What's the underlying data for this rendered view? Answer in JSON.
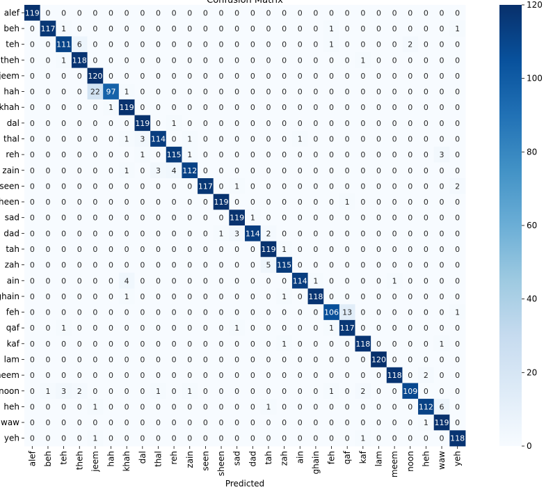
{
  "chart_data": {
    "type": "heatmap",
    "title": "Confusion Matrix",
    "xlabel": "Predicted",
    "ylabel": "",
    "labels": [
      "alef",
      "beh",
      "teh",
      "theh",
      "jeem",
      "hah",
      "khah",
      "dal",
      "thal",
      "reh",
      "zain",
      "seen",
      "sheen",
      "sad",
      "dad",
      "tah",
      "zah",
      "ain",
      "ghain",
      "feh",
      "qaf",
      "kaf",
      "lam",
      "meem",
      "noon",
      "heh",
      "waw",
      "yeh"
    ],
    "matrix": [
      [
        119,
        0,
        0,
        0,
        0,
        0,
        0,
        0,
        0,
        0,
        0,
        0,
        0,
        0,
        0,
        0,
        0,
        0,
        0,
        0,
        0,
        0,
        0,
        0,
        0,
        0,
        0,
        0
      ],
      [
        0,
        117,
        1,
        0,
        0,
        0,
        0,
        0,
        0,
        0,
        0,
        0,
        0,
        0,
        0,
        0,
        0,
        0,
        0,
        1,
        0,
        0,
        0,
        0,
        0,
        0,
        0,
        1
      ],
      [
        0,
        0,
        111,
        6,
        0,
        0,
        0,
        0,
        0,
        0,
        0,
        0,
        0,
        0,
        0,
        0,
        0,
        0,
        0,
        1,
        0,
        0,
        0,
        0,
        2,
        0,
        0,
        0
      ],
      [
        0,
        0,
        1,
        118,
        0,
        0,
        0,
        0,
        0,
        0,
        0,
        0,
        0,
        0,
        0,
        0,
        0,
        0,
        0,
        0,
        0,
        1,
        0,
        0,
        0,
        0,
        0,
        0
      ],
      [
        0,
        0,
        0,
        0,
        120,
        0,
        0,
        0,
        0,
        0,
        0,
        0,
        0,
        0,
        0,
        0,
        0,
        0,
        0,
        0,
        0,
        0,
        0,
        0,
        0,
        0,
        0,
        0
      ],
      [
        0,
        0,
        0,
        0,
        22,
        97,
        1,
        0,
        0,
        0,
        0,
        0,
        0,
        0,
        0,
        0,
        0,
        0,
        0,
        0,
        0,
        0,
        0,
        0,
        0,
        0,
        0,
        0
      ],
      [
        0,
        0,
        0,
        0,
        0,
        1,
        119,
        0,
        0,
        0,
        0,
        0,
        0,
        0,
        0,
        0,
        0,
        0,
        0,
        0,
        0,
        0,
        0,
        0,
        0,
        0,
        0,
        0
      ],
      [
        0,
        0,
        0,
        0,
        0,
        0,
        0,
        119,
        0,
        1,
        0,
        0,
        0,
        0,
        0,
        0,
        0,
        0,
        0,
        0,
        0,
        0,
        0,
        0,
        0,
        0,
        0,
        0
      ],
      [
        0,
        0,
        0,
        0,
        0,
        0,
        1,
        3,
        114,
        0,
        1,
        0,
        0,
        0,
        0,
        0,
        0,
        1,
        0,
        0,
        0,
        0,
        0,
        0,
        0,
        0,
        0,
        0
      ],
      [
        0,
        0,
        0,
        0,
        0,
        0,
        0,
        1,
        0,
        115,
        1,
        0,
        0,
        0,
        0,
        0,
        0,
        0,
        0,
        0,
        0,
        0,
        0,
        0,
        0,
        0,
        3,
        0
      ],
      [
        0,
        0,
        0,
        0,
        0,
        0,
        1,
        0,
        3,
        4,
        112,
        0,
        0,
        0,
        0,
        0,
        0,
        0,
        0,
        0,
        0,
        0,
        0,
        0,
        0,
        0,
        0,
        0
      ],
      [
        0,
        0,
        0,
        0,
        0,
        0,
        0,
        0,
        0,
        0,
        0,
        117,
        0,
        1,
        0,
        0,
        0,
        0,
        0,
        0,
        0,
        0,
        0,
        0,
        0,
        0,
        0,
        2
      ],
      [
        0,
        0,
        0,
        0,
        0,
        0,
        0,
        0,
        0,
        0,
        0,
        0,
        119,
        0,
        0,
        0,
        0,
        0,
        0,
        0,
        1,
        0,
        0,
        0,
        0,
        0,
        0,
        0
      ],
      [
        0,
        0,
        0,
        0,
        0,
        0,
        0,
        0,
        0,
        0,
        0,
        0,
        0,
        119,
        1,
        0,
        0,
        0,
        0,
        0,
        0,
        0,
        0,
        0,
        0,
        0,
        0,
        0
      ],
      [
        0,
        0,
        0,
        0,
        0,
        0,
        0,
        0,
        0,
        0,
        0,
        0,
        1,
        3,
        114,
        2,
        0,
        0,
        0,
        0,
        0,
        0,
        0,
        0,
        0,
        0,
        0,
        0
      ],
      [
        0,
        0,
        0,
        0,
        0,
        0,
        0,
        0,
        0,
        0,
        0,
        0,
        0,
        0,
        0,
        119,
        1,
        0,
        0,
        0,
        0,
        0,
        0,
        0,
        0,
        0,
        0,
        0
      ],
      [
        0,
        0,
        0,
        0,
        0,
        0,
        0,
        0,
        0,
        0,
        0,
        0,
        0,
        0,
        0,
        5,
        115,
        0,
        0,
        0,
        0,
        0,
        0,
        0,
        0,
        0,
        0,
        0
      ],
      [
        0,
        0,
        0,
        0,
        0,
        0,
        4,
        0,
        0,
        0,
        0,
        0,
        0,
        0,
        0,
        0,
        0,
        114,
        1,
        0,
        0,
        0,
        0,
        1,
        0,
        0,
        0,
        0
      ],
      [
        0,
        0,
        0,
        0,
        0,
        0,
        1,
        0,
        0,
        0,
        0,
        0,
        0,
        0,
        0,
        0,
        1,
        0,
        118,
        0,
        0,
        0,
        0,
        0,
        0,
        0,
        0,
        0
      ],
      [
        0,
        0,
        0,
        0,
        0,
        0,
        0,
        0,
        0,
        0,
        0,
        0,
        0,
        0,
        0,
        0,
        0,
        0,
        0,
        106,
        13,
        0,
        0,
        0,
        0,
        0,
        0,
        1
      ],
      [
        0,
        0,
        1,
        0,
        0,
        0,
        0,
        0,
        0,
        0,
        0,
        0,
        0,
        1,
        0,
        0,
        0,
        0,
        0,
        1,
        117,
        0,
        0,
        0,
        0,
        0,
        0,
        0
      ],
      [
        0,
        0,
        0,
        0,
        0,
        0,
        0,
        0,
        0,
        0,
        0,
        0,
        0,
        0,
        0,
        0,
        1,
        0,
        0,
        0,
        0,
        118,
        0,
        0,
        0,
        0,
        1,
        0
      ],
      [
        0,
        0,
        0,
        0,
        0,
        0,
        0,
        0,
        0,
        0,
        0,
        0,
        0,
        0,
        0,
        0,
        0,
        0,
        0,
        0,
        0,
        0,
        120,
        0,
        0,
        0,
        0,
        0
      ],
      [
        0,
        0,
        0,
        0,
        0,
        0,
        0,
        0,
        0,
        0,
        0,
        0,
        0,
        0,
        0,
        0,
        0,
        0,
        0,
        0,
        0,
        0,
        0,
        118,
        0,
        2,
        0,
        0
      ],
      [
        0,
        1,
        3,
        2,
        0,
        0,
        0,
        0,
        1,
        0,
        1,
        0,
        0,
        0,
        0,
        0,
        0,
        0,
        0,
        1,
        0,
        2,
        0,
        0,
        109,
        0,
        0,
        0
      ],
      [
        0,
        0,
        0,
        0,
        1,
        0,
        0,
        0,
        0,
        0,
        0,
        0,
        0,
        0,
        0,
        1,
        0,
        0,
        0,
        0,
        0,
        0,
        0,
        0,
        0,
        112,
        6,
        0
      ],
      [
        0,
        0,
        0,
        0,
        0,
        0,
        0,
        0,
        0,
        0,
        0,
        0,
        0,
        0,
        0,
        0,
        0,
        0,
        0,
        0,
        0,
        0,
        0,
        0,
        0,
        1,
        119,
        0
      ],
      [
        0,
        0,
        0,
        0,
        1,
        0,
        0,
        0,
        0,
        0,
        0,
        0,
        0,
        0,
        0,
        0,
        0,
        0,
        0,
        0,
        0,
        1,
        0,
        0,
        0,
        0,
        0,
        118
      ]
    ],
    "colormap": "Blues",
    "vmin": 0,
    "vmax": 120,
    "colorbar_ticks": [
      0,
      20,
      40,
      60,
      80,
      100,
      120
    ],
    "grid": false,
    "colors": {
      "low": "#f7fbff",
      "high": "#08306b"
    }
  }
}
